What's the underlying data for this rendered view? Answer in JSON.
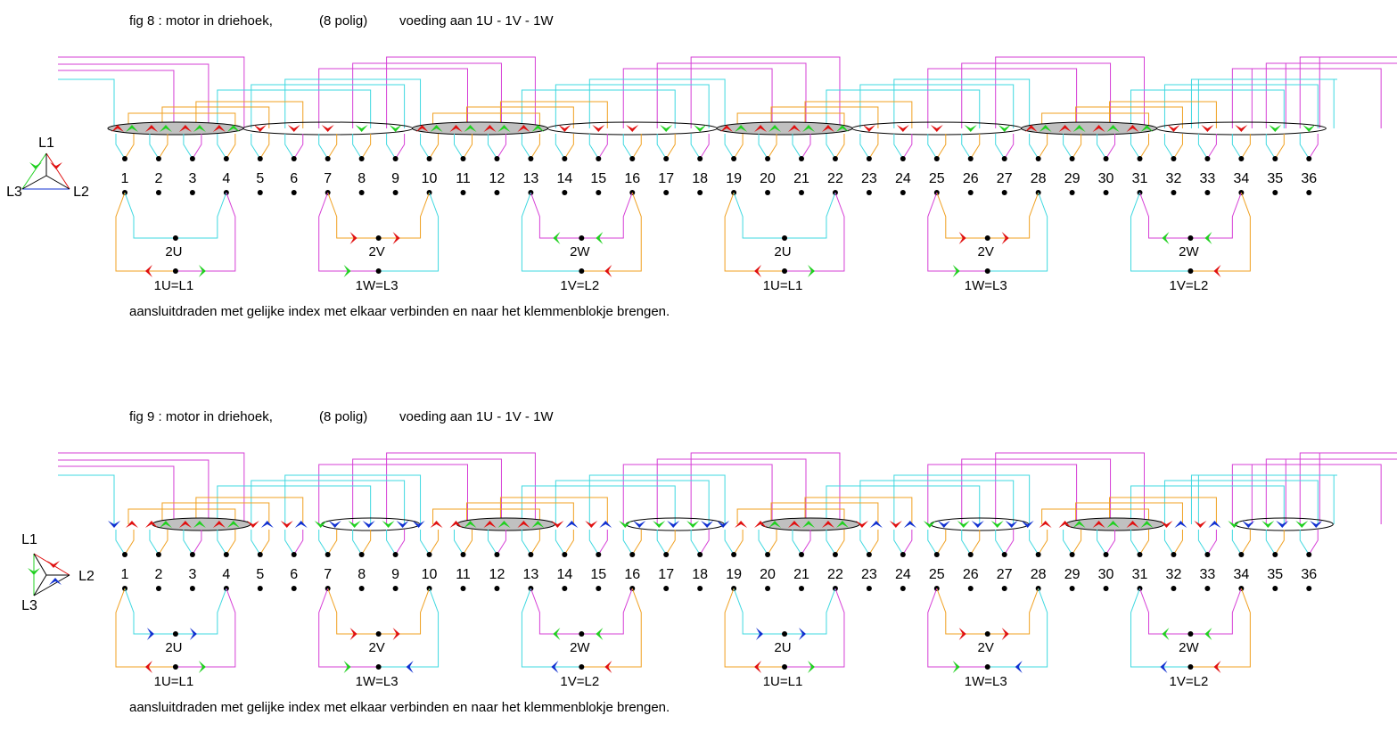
{
  "colors": {
    "cyan": "#3fd8e0",
    "magenta": "#d63fd6",
    "orange": "#f0a020",
    "red": "#e01010",
    "green": "#20d020",
    "blue": "#1030d0",
    "black": "#000000",
    "grey": "#c0c0c0"
  },
  "figures": [
    {
      "id": "fig8",
      "title": "fig 8 : motor in driehoek,",
      "poles": "(8 polig)",
      "supply": "voeding aan 1U - 1V - 1W",
      "triangle": {
        "top": "L1",
        "left": "L3",
        "right": "L2"
      },
      "slots": [
        "1",
        "2",
        "3",
        "4",
        "5",
        "6",
        "7",
        "8",
        "9",
        "10",
        "11",
        "12",
        "13",
        "14",
        "15",
        "16",
        "17",
        "18",
        "19",
        "20",
        "21",
        "22",
        "23",
        "24",
        "25",
        "26",
        "27",
        "28",
        "29",
        "30",
        "31",
        "32",
        "33",
        "34",
        "35",
        "36"
      ],
      "groups": [
        {
          "mid": "2U",
          "bottom": "1U=L1"
        },
        {
          "mid": "2V",
          "bottom": "1W=L3"
        },
        {
          "mid": "2W",
          "bottom": "1V=L2"
        },
        {
          "mid": "2U",
          "bottom": "1U=L1"
        },
        {
          "mid": "2V",
          "bottom": "1W=L3"
        },
        {
          "mid": "2W",
          "bottom": "1V=L2"
        }
      ],
      "note": "aansluitdraden met gelijke index met elkaar verbinden en naar het klemmenblokje brengen."
    },
    {
      "id": "fig9",
      "title": "fig 9 : motor in driehoek,",
      "poles": "(8 polig)",
      "supply": "voeding aan 1U - 1V - 1W",
      "triangle": {
        "top": "L1",
        "left": "L3",
        "right": "L2"
      },
      "slots": [
        "1",
        "2",
        "3",
        "4",
        "5",
        "6",
        "7",
        "8",
        "9",
        "10",
        "11",
        "12",
        "13",
        "14",
        "15",
        "16",
        "17",
        "18",
        "19",
        "20",
        "21",
        "22",
        "23",
        "24",
        "25",
        "26",
        "27",
        "28",
        "29",
        "30",
        "31",
        "32",
        "33",
        "34",
        "35",
        "36"
      ],
      "groups": [
        {
          "mid": "2U",
          "bottom": "1U=L1"
        },
        {
          "mid": "2V",
          "bottom": "1W=L3"
        },
        {
          "mid": "2W",
          "bottom": "1V=L2"
        },
        {
          "mid": "2U",
          "bottom": "1U=L1"
        },
        {
          "mid": "2V",
          "bottom": "1W=L3"
        },
        {
          "mid": "2W",
          "bottom": "1V=L2"
        }
      ],
      "note": "aansluitdraden met gelijke index met elkaar verbinden en naar het klemmenblokje brengen."
    }
  ]
}
